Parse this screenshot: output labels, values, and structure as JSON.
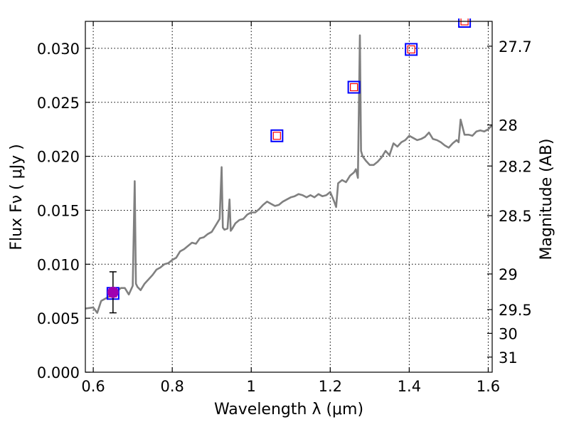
{
  "chart_data": {
    "type": "line",
    "xlabel": "Wavelength  λ (μm)",
    "ylabel": "Flux  Fν  ( μJy )",
    "y2label": "Magnitude (AB)",
    "xlim": [
      0.58,
      1.61
    ],
    "ylim": [
      0.0,
      0.0325
    ],
    "grid": true,
    "x_ticks": [
      0.6,
      0.8,
      1.0,
      1.2,
      1.4,
      1.6
    ],
    "x_tick_labels": [
      "0.6",
      "0.8",
      "1",
      "1.2",
      "1.4",
      "1.6"
    ],
    "y_ticks": [
      0.0,
      0.005,
      0.01,
      0.015,
      0.02,
      0.025,
      0.03
    ],
    "y_tick_labels": [
      "0.000",
      "0.005",
      "0.010",
      "0.015",
      "0.020",
      "0.025",
      "0.030"
    ],
    "y2_ticks": [
      {
        "label": "27.7",
        "flux": 0.0302
      },
      {
        "label": "28",
        "flux": 0.0229
      },
      {
        "label": "28.2",
        "flux": 0.0191
      },
      {
        "label": "28.5",
        "flux": 0.0145
      },
      {
        "label": "29",
        "flux": 0.0091
      },
      {
        "label": "29.5",
        "flux": 0.0058
      },
      {
        "label": "30",
        "flux": 0.0036
      },
      {
        "label": "31",
        "flux": 0.0014
      }
    ],
    "colors": {
      "spectrum": "#808080",
      "model_square_outer": "#0000ff",
      "model_square_inner": "#ff0000",
      "observed_point": "#a000b0",
      "error_bar": "#000000"
    },
    "series": [
      {
        "kind": "spectrum",
        "x": [
          0.58,
          0.6,
          0.61,
          0.62,
          0.63,
          0.64,
          0.65,
          0.66,
          0.67,
          0.68,
          0.69,
          0.7,
          0.705,
          0.708,
          0.712,
          0.72,
          0.73,
          0.74,
          0.75,
          0.76,
          0.77,
          0.78,
          0.79,
          0.8,
          0.81,
          0.82,
          0.83,
          0.84,
          0.85,
          0.86,
          0.87,
          0.88,
          0.89,
          0.9,
          0.91,
          0.92,
          0.925,
          0.928,
          0.932,
          0.94,
          0.945,
          0.948,
          0.952,
          0.96,
          0.97,
          0.98,
          0.99,
          1.0,
          1.01,
          1.02,
          1.03,
          1.04,
          1.05,
          1.06,
          1.07,
          1.08,
          1.09,
          1.1,
          1.11,
          1.12,
          1.13,
          1.14,
          1.15,
          1.16,
          1.17,
          1.18,
          1.19,
          1.2,
          1.21,
          1.215,
          1.22,
          1.23,
          1.24,
          1.25,
          1.26,
          1.265,
          1.27,
          1.275,
          1.278,
          1.282,
          1.29,
          1.3,
          1.31,
          1.32,
          1.33,
          1.34,
          1.35,
          1.36,
          1.37,
          1.38,
          1.39,
          1.4,
          1.41,
          1.42,
          1.43,
          1.44,
          1.45,
          1.46,
          1.47,
          1.48,
          1.49,
          1.5,
          1.51,
          1.52,
          1.525,
          1.53,
          1.54,
          1.55,
          1.56,
          1.57,
          1.58,
          1.59,
          1.6,
          1.61
        ],
        "y": [
          0.0059,
          0.006,
          0.0055,
          0.0066,
          0.0068,
          0.007,
          0.0073,
          0.0075,
          0.0078,
          0.0078,
          0.0072,
          0.008,
          0.0177,
          0.0082,
          0.0079,
          0.0076,
          0.0082,
          0.0086,
          0.009,
          0.0095,
          0.0097,
          0.01,
          0.0101,
          0.0104,
          0.0106,
          0.0112,
          0.0114,
          0.0117,
          0.012,
          0.0119,
          0.0124,
          0.0125,
          0.0128,
          0.013,
          0.0136,
          0.0142,
          0.019,
          0.0134,
          0.0132,
          0.0133,
          0.016,
          0.0131,
          0.0133,
          0.0138,
          0.0141,
          0.0142,
          0.0146,
          0.0148,
          0.0148,
          0.0151,
          0.0155,
          0.0158,
          0.0156,
          0.0154,
          0.0155,
          0.0158,
          0.016,
          0.0162,
          0.0163,
          0.0165,
          0.0164,
          0.0162,
          0.0164,
          0.0162,
          0.0165,
          0.0163,
          0.0164,
          0.0167,
          0.0158,
          0.0153,
          0.0175,
          0.0178,
          0.0176,
          0.0182,
          0.0185,
          0.0188,
          0.018,
          0.0312,
          0.0205,
          0.02,
          0.0196,
          0.0192,
          0.0192,
          0.0195,
          0.0199,
          0.0205,
          0.0201,
          0.0212,
          0.0209,
          0.0213,
          0.0215,
          0.0219,
          0.0217,
          0.0215,
          0.0216,
          0.0218,
          0.0222,
          0.0216,
          0.0215,
          0.0213,
          0.021,
          0.0208,
          0.0212,
          0.0215,
          0.0213,
          0.0234,
          0.022,
          0.022,
          0.0219,
          0.0223,
          0.0224,
          0.0223,
          0.0225,
          0.0229
        ]
      },
      {
        "kind": "model_squares",
        "x": [
          0.65,
          1.065,
          1.26,
          1.405,
          1.54
        ],
        "y": [
          0.0073,
          0.0219,
          0.0264,
          0.0299,
          0.0325
        ]
      },
      {
        "kind": "observed",
        "x": [
          0.65
        ],
        "y": [
          0.0074
        ],
        "yerr_low": [
          0.0019
        ],
        "yerr_high": [
          0.0019
        ]
      }
    ]
  }
}
